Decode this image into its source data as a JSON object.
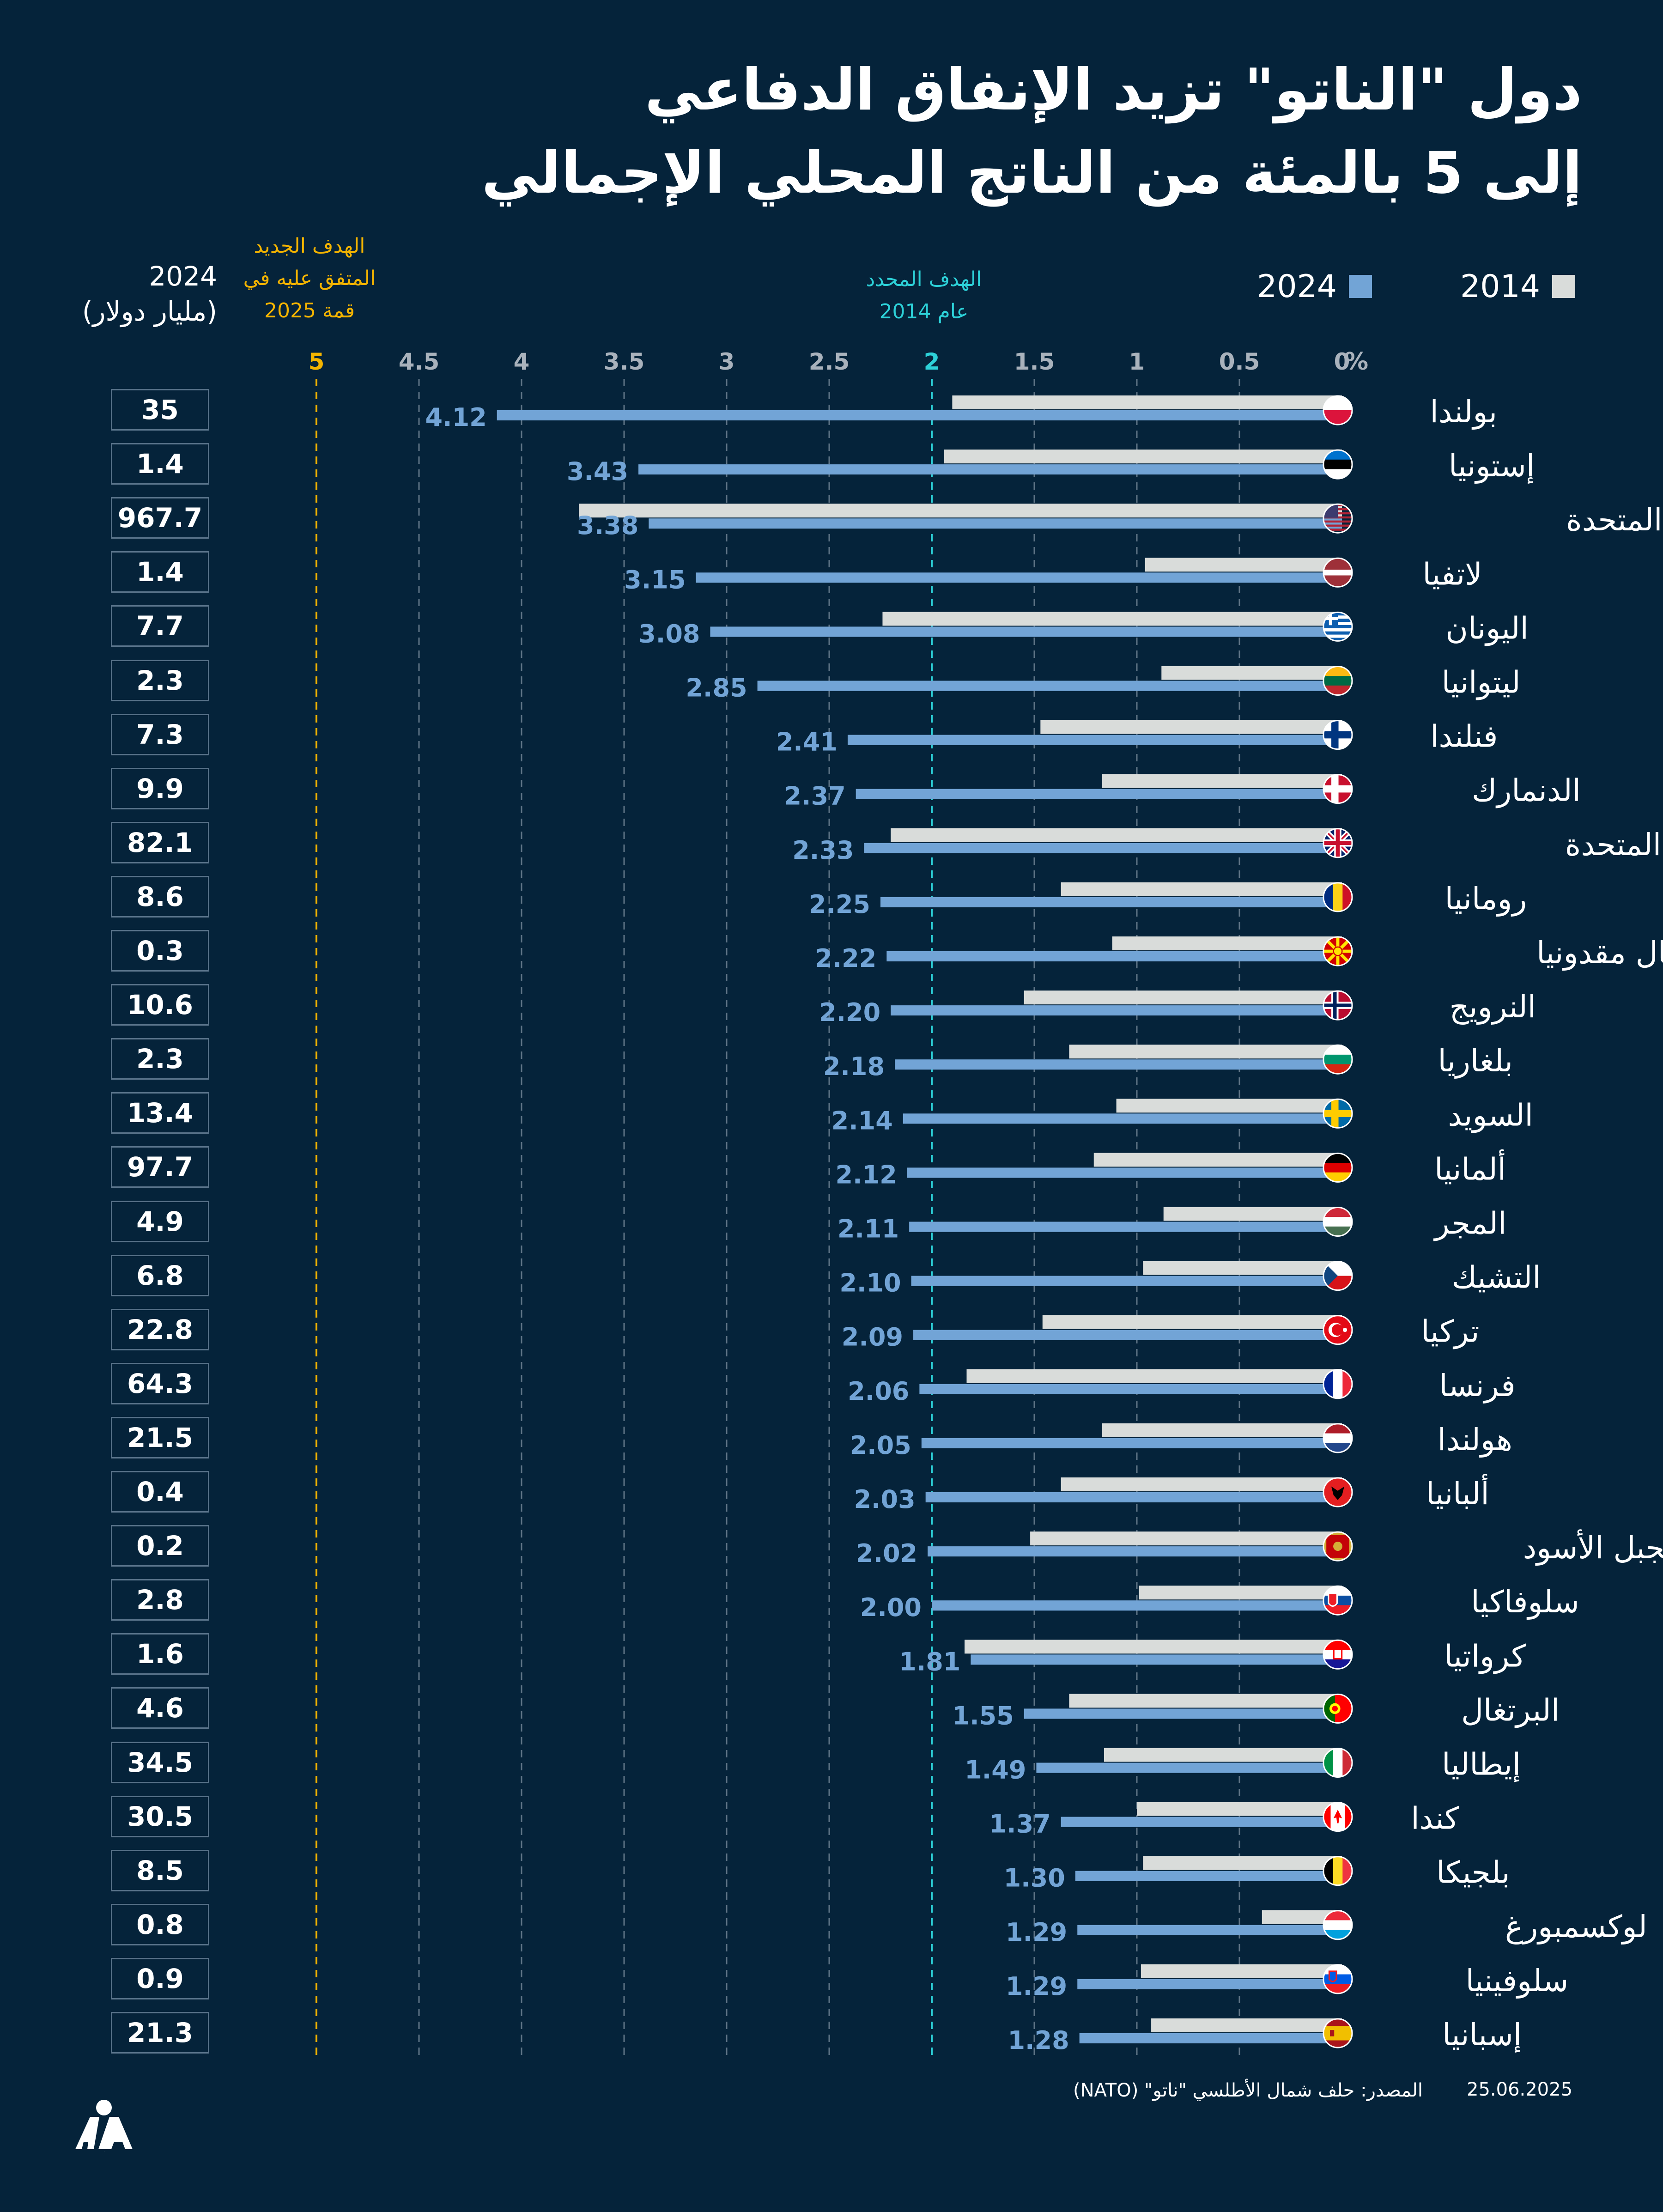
{
  "title": {
    "line1": "دول \"الناتو\" تزيد الإنفاق الدفاعي",
    "line2": "إلى 5 بالمئة من الناتج المحلي الإجمالي"
  },
  "legend": {
    "y2014": "2014",
    "y2024": "2024"
  },
  "goal_new_label": [
    "الهدف الجديد",
    "المتفق عليه في",
    "قمة 2025"
  ],
  "goal_2014_label": [
    "الهدف المحدد",
    "عام 2014"
  ],
  "budget_header": [
    "2024",
    "(مليار دولار)"
  ],
  "footer": {
    "date": "25.06.2025",
    "source": "المصدر: حلف شمال الأطلسي \"ناتو\" (NATO)",
    "logo_text": "AA"
  },
  "colors": {
    "background": "#05233a",
    "bar2014": "#d9dcda",
    "bar2024": "#72a4d6",
    "value_label": "#72a4d6",
    "goal_new": "#f4b400",
    "goal_2014": "#2dd1d8",
    "axis_tick": "#a9b2bc",
    "gridline": "#5f7486"
  },
  "chart_data": {
    "type": "bar",
    "orientation": "horizontal",
    "title": "دول \"الناتو\" تزيد الإنفاق الدفاعي إلى 5 بالمئة من الناتج المحلي الإجمالي",
    "xlabel": "%",
    "xlim": [
      0,
      5
    ],
    "ticks": [
      "0",
      "0.5",
      "1",
      "1.5",
      "2",
      "2.5",
      "3",
      "3.5",
      "4",
      "4.5",
      "5"
    ],
    "tick_values": [
      0,
      0.5,
      1,
      1.5,
      2,
      2.5,
      3,
      3.5,
      4,
      4.5,
      5
    ],
    "reference_lines": [
      {
        "value": 2,
        "label": "الهدف المحدد عام 2014"
      },
      {
        "value": 5,
        "label": "الهدف الجديد المتفق عليه في قمة 2025"
      }
    ],
    "categories": [
      "بولندا",
      "إستونيا",
      "الولايات المتحدة",
      "لاتفيا",
      "اليونان",
      "ليتوانيا",
      "فنلندا",
      "الدنمارك",
      "المملكة المتحدة",
      "رومانيا",
      "شمال مقدونيا",
      "النرويج",
      "بلغاريا",
      "السويد",
      "ألمانيا",
      "المجر",
      "التشيك",
      "تركيا",
      "فرنسا",
      "هولندا",
      "ألبانيا",
      "الجبل الأسود",
      "سلوفاكيا",
      "كرواتيا",
      "البرتغال",
      "إيطاليا",
      "كندا",
      "بلجيكا",
      "لوكسمبورغ",
      "سلوفينيا",
      "إسبانيا"
    ],
    "flags": [
      "poland",
      "estonia",
      "usa",
      "latvia",
      "greece",
      "lithuania",
      "finland",
      "denmark",
      "uk",
      "romania",
      "north-macedonia",
      "norway",
      "bulgaria",
      "sweden",
      "germany",
      "hungary",
      "czechia",
      "turkey",
      "france",
      "netherlands",
      "albania",
      "montenegro",
      "slovakia",
      "croatia",
      "portugal",
      "italy",
      "canada",
      "belgium",
      "luxembourg",
      "slovenia",
      "spain"
    ],
    "series": [
      {
        "name": "2014",
        "values": [
          1.9,
          1.94,
          3.72,
          0.96,
          2.24,
          0.88,
          1.47,
          1.17,
          2.2,
          1.37,
          1.12,
          1.55,
          1.33,
          1.1,
          1.21,
          0.87,
          0.97,
          1.46,
          1.83,
          1.17,
          1.37,
          1.52,
          0.99,
          1.84,
          1.33,
          1.16,
          1.0,
          0.97,
          0.39,
          0.98,
          0.93
        ]
      },
      {
        "name": "2024",
        "values": [
          4.12,
          3.43,
          3.38,
          3.15,
          3.08,
          2.85,
          2.41,
          2.37,
          2.33,
          2.25,
          2.22,
          2.2,
          2.18,
          2.14,
          2.12,
          2.11,
          2.1,
          2.09,
          2.06,
          2.05,
          2.03,
          2.02,
          2.0,
          1.81,
          1.55,
          1.49,
          1.37,
          1.3,
          1.29,
          1.29,
          1.28
        ]
      }
    ],
    "value_labels_2024": [
      "4.12",
      "3.43",
      "3.38",
      "3.15",
      "3.08",
      "2.85",
      "2.41",
      "2.37",
      "2.33",
      "2.25",
      "2.22",
      "2.20",
      "2.18",
      "2.14",
      "2.12",
      "2.11",
      "2.10",
      "2.09",
      "2.06",
      "2.05",
      "2.03",
      "2.02",
      "2.00",
      "1.81",
      "1.55",
      "1.49",
      "1.37",
      "1.30",
      "1.29",
      "1.29",
      "1.28"
    ],
    "budget_2024_billion_usd": [
      "35",
      "1.4",
      "967.7",
      "1.4",
      "7.7",
      "2.3",
      "7.3",
      "9.9",
      "82.1",
      "8.6",
      "0.3",
      "10.6",
      "2.3",
      "13.4",
      "97.7",
      "4.9",
      "6.8",
      "22.8",
      "64.3",
      "21.5",
      "0.4",
      "0.2",
      "2.8",
      "1.6",
      "4.6",
      "34.5",
      "30.5",
      "8.5",
      "0.8",
      "0.9",
      "21.3"
    ]
  }
}
